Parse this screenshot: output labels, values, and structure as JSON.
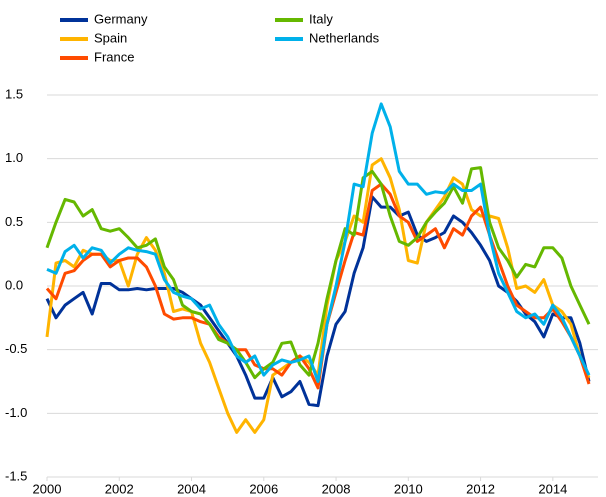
{
  "chart_data": {
    "type": "line",
    "x": [
      2000,
      2000.25,
      2000.5,
      2000.75,
      2001,
      2001.25,
      2001.5,
      2001.75,
      2002,
      2002.25,
      2002.5,
      2002.75,
      2003,
      2003.25,
      2003.5,
      2003.75,
      2004,
      2004.25,
      2004.5,
      2004.75,
      2005,
      2005.25,
      2005.5,
      2005.75,
      2006,
      2006.25,
      2006.5,
      2006.75,
      2007,
      2007.25,
      2007.5,
      2007.75,
      2008,
      2008.25,
      2008.5,
      2008.75,
      2009,
      2009.25,
      2009.5,
      2009.75,
      2010,
      2010.25,
      2010.5,
      2010.75,
      2011,
      2011.25,
      2011.5,
      2011.75,
      2012,
      2012.25,
      2012.5,
      2012.75,
      2013,
      2013.25,
      2013.5,
      2013.75,
      2014,
      2014.25,
      2014.5,
      2014.75,
      2015
    ],
    "series": [
      {
        "name": "Germany",
        "color": "#003299",
        "values": [
          -0.1,
          -0.25,
          -0.15,
          -0.1,
          -0.05,
          -0.22,
          0.02,
          0.02,
          -0.03,
          -0.03,
          -0.02,
          -0.03,
          -0.02,
          -0.02,
          -0.02,
          -0.05,
          -0.1,
          -0.15,
          -0.25,
          -0.35,
          -0.45,
          -0.55,
          -0.7,
          -0.88,
          -0.88,
          -0.72,
          -0.87,
          -0.83,
          -0.75,
          -0.93,
          -0.94,
          -0.55,
          -0.3,
          -0.2,
          0.1,
          0.3,
          0.7,
          0.62,
          0.62,
          0.55,
          0.58,
          0.4,
          0.35,
          0.38,
          0.42,
          0.55,
          0.5,
          0.42,
          0.32,
          0.2,
          0.0,
          -0.05,
          -0.12,
          -0.22,
          -0.28,
          -0.4,
          -0.22,
          -0.25,
          -0.25,
          -0.45,
          -0.75
        ]
      },
      {
        "name": "Spain",
        "color": "#ffb400",
        "values": [
          -0.4,
          0.18,
          0.2,
          0.15,
          0.28,
          0.25,
          0.25,
          0.2,
          0.2,
          0.0,
          0.25,
          0.38,
          0.28,
          0.1,
          -0.2,
          -0.18,
          -0.2,
          -0.45,
          -0.6,
          -0.8,
          -1.0,
          -1.15,
          -1.05,
          -1.15,
          -1.05,
          -0.7,
          -0.65,
          -0.6,
          -0.55,
          -0.6,
          -0.7,
          -0.15,
          0.2,
          0.35,
          0.55,
          0.5,
          0.95,
          1.0,
          0.85,
          0.6,
          0.2,
          0.18,
          0.5,
          0.6,
          0.7,
          0.85,
          0.8,
          0.6,
          0.55,
          0.55,
          0.53,
          0.3,
          -0.02,
          0.0,
          -0.05,
          0.05,
          -0.15,
          -0.2,
          -0.3,
          -0.55,
          -0.72
        ]
      },
      {
        "name": "France",
        "color": "#ff4b00",
        "values": [
          -0.02,
          -0.1,
          0.1,
          0.12,
          0.2,
          0.25,
          0.25,
          0.15,
          0.2,
          0.22,
          0.22,
          0.15,
          0.0,
          -0.22,
          -0.26,
          -0.25,
          -0.25,
          -0.28,
          -0.3,
          -0.4,
          -0.45,
          -0.5,
          -0.5,
          -0.62,
          -0.65,
          -0.65,
          -0.7,
          -0.6,
          -0.55,
          -0.65,
          -0.8,
          -0.3,
          -0.05,
          0.2,
          0.42,
          0.4,
          0.75,
          0.8,
          0.72,
          0.55,
          0.5,
          0.35,
          0.4,
          0.45,
          0.3,
          0.45,
          0.4,
          0.55,
          0.62,
          0.4,
          0.2,
          0.0,
          -0.15,
          -0.2,
          -0.25,
          -0.25,
          -0.18,
          -0.28,
          -0.4,
          -0.55,
          -0.77
        ]
      },
      {
        "name": "Italy",
        "color": "#65b800",
        "values": [
          0.3,
          0.5,
          0.68,
          0.66,
          0.55,
          0.6,
          0.45,
          0.43,
          0.45,
          0.38,
          0.3,
          0.32,
          0.37,
          0.15,
          0.05,
          -0.15,
          -0.2,
          -0.22,
          -0.3,
          -0.42,
          -0.45,
          -0.5,
          -0.6,
          -0.72,
          -0.65,
          -0.6,
          -0.45,
          -0.44,
          -0.62,
          -0.7,
          -0.45,
          -0.1,
          0.2,
          0.45,
          0.4,
          0.85,
          0.9,
          0.8,
          0.55,
          0.35,
          0.32,
          0.38,
          0.5,
          0.58,
          0.65,
          0.78,
          0.65,
          0.92,
          0.93,
          0.5,
          0.3,
          0.2,
          0.07,
          0.17,
          0.15,
          0.3,
          0.3,
          0.22,
          0.0,
          -0.15,
          -0.3
        ]
      },
      {
        "name": "Netherlands",
        "color": "#00b1ea",
        "values": [
          0.13,
          0.1,
          0.27,
          0.32,
          0.22,
          0.3,
          0.28,
          0.18,
          0.25,
          0.3,
          0.28,
          0.27,
          0.25,
          0.05,
          -0.05,
          -0.08,
          -0.1,
          -0.18,
          -0.15,
          -0.3,
          -0.4,
          -0.55,
          -0.6,
          -0.55,
          -0.7,
          -0.62,
          -0.58,
          -0.6,
          -0.58,
          -0.55,
          -0.75,
          -0.3,
          0.0,
          0.35,
          0.8,
          0.78,
          1.2,
          1.43,
          1.25,
          0.9,
          0.8,
          0.8,
          0.72,
          0.74,
          0.73,
          0.8,
          0.75,
          0.75,
          0.8,
          0.4,
          0.1,
          -0.05,
          -0.2,
          -0.25,
          -0.22,
          -0.3,
          -0.15,
          -0.25,
          -0.4,
          -0.55,
          -0.7
        ]
      }
    ],
    "xlim": [
      2000,
      2015.25
    ],
    "xticks": [
      2000,
      2002,
      2004,
      2006,
      2008,
      2010,
      2012,
      2014
    ],
    "ylim": [
      -1.5,
      1.5
    ],
    "yticks": [
      -1.5,
      {
        "value": -1,
        "label": "-1.0"
      },
      -0.5,
      {
        "value": 0,
        "label": "0.0"
      },
      0.5,
      {
        "value": 1,
        "label": "1.0"
      },
      1.5
    ],
    "grid": true
  }
}
